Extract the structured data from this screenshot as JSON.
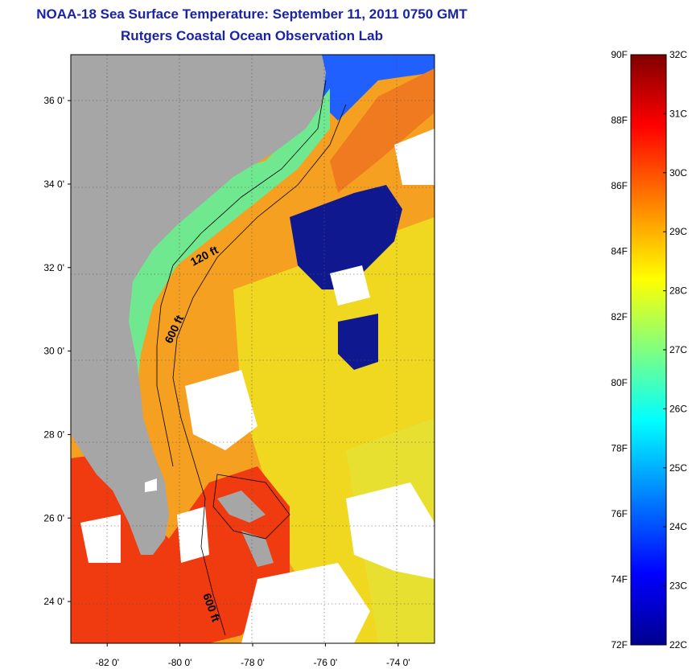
{
  "title": {
    "line1": "NOAA-18 Sea Surface Temperature:  September 11, 2011 0750 GMT",
    "line2": "Rutgers Coastal Ocean Observation Lab"
  },
  "map": {
    "lat_ticks": [
      {
        "value": 36,
        "label": "36 0'"
      },
      {
        "value": 34,
        "label": "34 0'"
      },
      {
        "value": 32,
        "label": "32 0'"
      },
      {
        "value": 30,
        "label": "30 0'"
      },
      {
        "value": 28,
        "label": "28 0'"
      },
      {
        "value": 26,
        "label": "26 0'"
      },
      {
        "value": 24,
        "label": "24 0'"
      }
    ],
    "lon_ticks": [
      {
        "value": -82,
        "label": "-82 0'"
      },
      {
        "value": -80,
        "label": "-80 0'"
      },
      {
        "value": -78,
        "label": "-78 0'"
      },
      {
        "value": -76,
        "label": "-76 0'"
      },
      {
        "value": -74,
        "label": "-74 0'"
      }
    ],
    "lat_range": [
      23.0,
      37.1
    ],
    "lon_range": [
      -83.0,
      -73.0
    ],
    "contour_labels": {
      "c120": "120 ft",
      "c600a": "600 ft",
      "c600b": "600 ft"
    },
    "land_color": "#a6a6a6",
    "cloud_color": "#ffffff"
  },
  "colorbar": {
    "f_labels": [
      "90F",
      "88F",
      "86F",
      "84F",
      "82F",
      "80F",
      "78F",
      "76F",
      "74F",
      "72F"
    ],
    "c_labels": [
      "32C",
      "31C",
      "30C",
      "29C",
      "28C",
      "27C",
      "26C",
      "25C",
      "24C",
      "23C",
      "22C"
    ],
    "min_c": 22,
    "max_c": 32,
    "colors": [
      "#00008f",
      "#0000ff",
      "#0080ff",
      "#00ffff",
      "#80ff80",
      "#ffff00",
      "#ff8000",
      "#ff0000",
      "#800000"
    ]
  }
}
